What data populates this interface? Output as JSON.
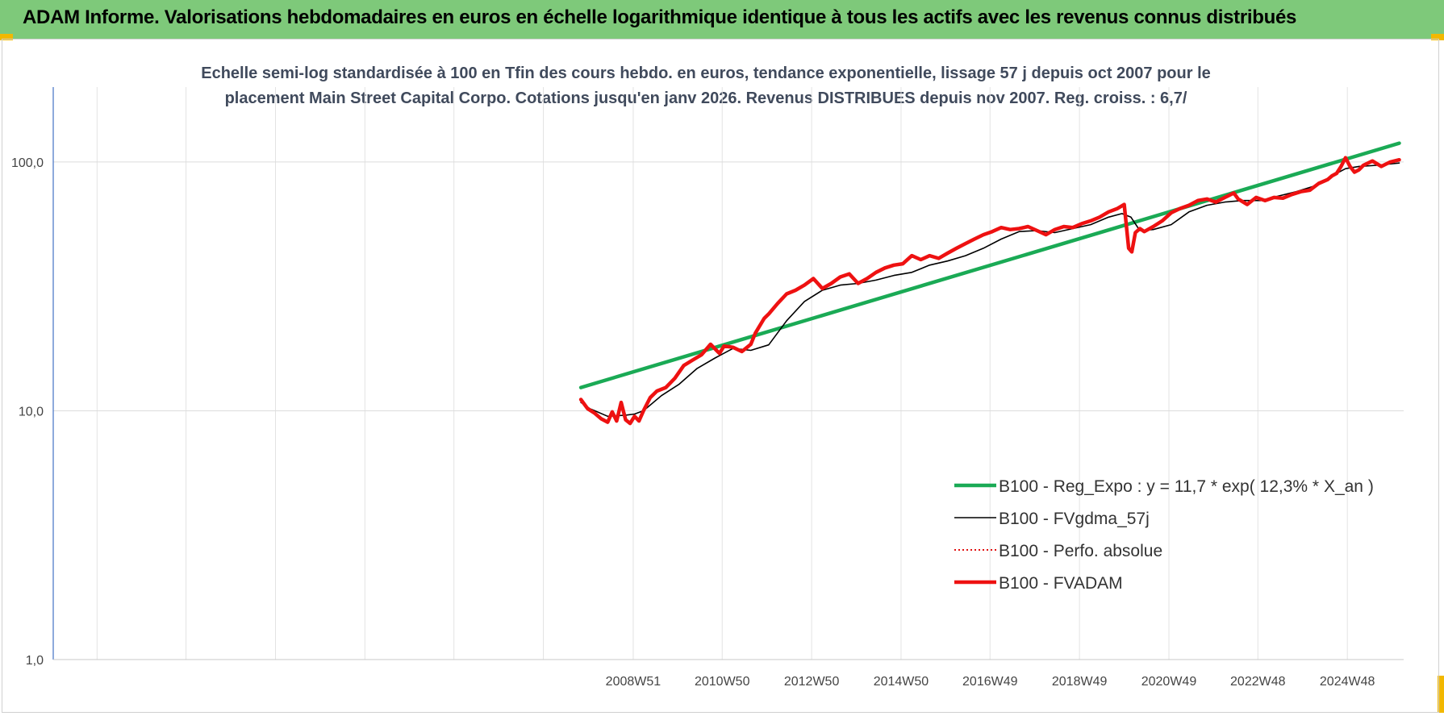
{
  "header": {
    "title": "ADAM Informe. Valorisations hebdomadaires en euros en échelle logarithmique identique à tous les actifs avec les revenus connus distribués"
  },
  "chart_data": {
    "type": "line",
    "title": "Echelle semi-log standardisée à 100 en Tfin des cours hebdo. en euros, tendance exponentielle, lissage 57 j depuis oct 2007 pour le placement Main Street Capital Corpo. Cotations jusqu'en janv 2026. Revenus DISTRIBUES depuis nov 2007. Reg. croiss. : 6,7/",
    "xlabel": "",
    "ylabel": "",
    "y_scale": "log",
    "ylim": [
      1,
      200
    ],
    "xlim": [
      1996.0,
      2026.2
    ],
    "grid": true,
    "legend_position": "bottom-right",
    "y_ticks": [
      "1,0",
      "10,0",
      "100,0"
    ],
    "y_tick_values": [
      1,
      10,
      100
    ],
    "x_ticks": [
      "2008W51",
      "2010W50",
      "2012W50",
      "2014W50",
      "2016W49",
      "2018W49",
      "2020W49",
      "2022W48",
      "2024W48"
    ],
    "x_tick_values": [
      2008.97,
      2010.96,
      2012.96,
      2014.96,
      2016.95,
      2018.95,
      2020.95,
      2022.94,
      2024.94
    ],
    "x_gridlines": [
      1996.98,
      1998.97,
      2000.97,
      2002.97,
      2004.96,
      2006.96,
      2008.97,
      2010.96,
      2012.96,
      2014.96,
      2016.95,
      2018.95,
      2020.95,
      2022.94,
      2024.94
    ],
    "series": [
      {
        "name": "B100 - Reg_Expo : y = 11,7 * exp( 12,3% *  X_an )",
        "color": "#1aaa55",
        "style": "thick",
        "x": [
          2007.8,
          2026.1
        ],
        "y": [
          12.4,
          119
        ]
      },
      {
        "name": "B100 - FVgdma_57j",
        "color": "#000000",
        "style": "thin",
        "x": [
          2007.8,
          2008.0,
          2008.4,
          2008.8,
          2009.0,
          2009.2,
          2009.6,
          2010.0,
          2010.4,
          2010.8,
          2011.2,
          2011.6,
          2012.0,
          2012.4,
          2012.8,
          2013.2,
          2013.6,
          2014.0,
          2014.4,
          2014.8,
          2015.2,
          2015.6,
          2016.0,
          2016.4,
          2016.8,
          2017.2,
          2017.6,
          2018.0,
          2018.4,
          2018.8,
          2019.2,
          2019.6,
          2019.9,
          2020.1,
          2020.3,
          2020.6,
          2021.0,
          2021.4,
          2021.8,
          2022.2,
          2022.6,
          2023.0,
          2023.4,
          2023.8,
          2024.2,
          2024.6,
          2024.9,
          2025.2,
          2025.6,
          2026.1
        ],
        "y": [
          10.8,
          10.2,
          9.5,
          9.6,
          9.7,
          10.0,
          11.5,
          12.8,
          14.8,
          16.3,
          17.8,
          17.5,
          18.4,
          23.0,
          27.5,
          30.5,
          32.0,
          32.5,
          33.5,
          35.0,
          36.0,
          38.5,
          40.0,
          42.0,
          45.0,
          49.0,
          52.5,
          53.0,
          52.0,
          54.0,
          56.0,
          60.0,
          62.0,
          60.0,
          53.0,
          53.5,
          56.0,
          63.0,
          67.0,
          69.0,
          70.0,
          70.0,
          73.0,
          76.0,
          80.0,
          88.0,
          94.0,
          96.0,
          97.0,
          99.0
        ]
      },
      {
        "name": "B100 - Perfo. absolue",
        "color": "#e01010",
        "style": "dotted",
        "x": [],
        "y": []
      },
      {
        "name": "B100 - FVADAM",
        "color": "#ee1111",
        "style": "thick",
        "x": [
          2007.8,
          2007.95,
          2008.1,
          2008.25,
          2008.4,
          2008.5,
          2008.6,
          2008.7,
          2008.8,
          2008.9,
          2009.0,
          2009.1,
          2009.2,
          2009.35,
          2009.5,
          2009.7,
          2009.9,
          2010.1,
          2010.3,
          2010.5,
          2010.7,
          2010.9,
          2011.0,
          2011.2,
          2011.4,
          2011.6,
          2011.7,
          2011.9,
          2012.0,
          2012.2,
          2012.4,
          2012.6,
          2012.8,
          2013.0,
          2013.2,
          2013.4,
          2013.6,
          2013.8,
          2014.0,
          2014.2,
          2014.4,
          2014.6,
          2014.8,
          2015.0,
          2015.2,
          2015.4,
          2015.6,
          2015.8,
          2016.0,
          2016.2,
          2016.4,
          2016.6,
          2016.8,
          2017.0,
          2017.2,
          2017.4,
          2017.6,
          2017.8,
          2018.0,
          2018.2,
          2018.4,
          2018.6,
          2018.8,
          2019.0,
          2019.2,
          2019.4,
          2019.6,
          2019.8,
          2019.95,
          2020.05,
          2020.12,
          2020.2,
          2020.3,
          2020.4,
          2020.6,
          2020.8,
          2021.0,
          2021.2,
          2021.4,
          2021.6,
          2021.8,
          2022.0,
          2022.2,
          2022.4,
          2022.5,
          2022.7,
          2022.9,
          2023.1,
          2023.3,
          2023.5,
          2023.7,
          2023.9,
          2024.1,
          2024.3,
          2024.5,
          2024.6,
          2024.7,
          2024.8,
          2024.9,
          2025.0,
          2025.1,
          2025.2,
          2025.3,
          2025.5,
          2025.7,
          2025.9,
          2026.1
        ],
        "y": [
          11.1,
          10.2,
          9.8,
          9.3,
          9.0,
          9.9,
          9.1,
          10.8,
          9.2,
          8.9,
          9.5,
          9.1,
          10.0,
          11.3,
          12.0,
          12.4,
          13.5,
          15.2,
          16.0,
          16.8,
          18.5,
          17.0,
          18.2,
          18.0,
          17.3,
          18.5,
          20.5,
          23.5,
          24.5,
          27.0,
          29.5,
          30.5,
          32.0,
          34.0,
          31.0,
          32.5,
          34.5,
          35.5,
          32.5,
          34.0,
          36.0,
          37.5,
          38.5,
          39.0,
          42.0,
          40.5,
          42.0,
          41.0,
          43.0,
          45.0,
          47.0,
          49.0,
          51.0,
          52.5,
          54.5,
          53.5,
          54.0,
          55.0,
          53.0,
          51.0,
          53.5,
          55.0,
          54.5,
          56.5,
          58.0,
          60.0,
          63.0,
          65.0,
          67.5,
          45.0,
          43.5,
          52.0,
          54.0,
          52.5,
          55.0,
          58.0,
          62.5,
          65.0,
          67.0,
          70.0,
          71.0,
          69.0,
          72.0,
          75.0,
          71.0,
          67.5,
          72.0,
          70.0,
          72.0,
          71.5,
          74.0,
          76.0,
          77.0,
          82.0,
          85.0,
          88.0,
          90.0,
          96.0,
          104.0,
          96.0,
          91.0,
          93.0,
          97.0,
          101.0,
          96.0,
          100.0,
          102.0
        ]
      }
    ]
  }
}
